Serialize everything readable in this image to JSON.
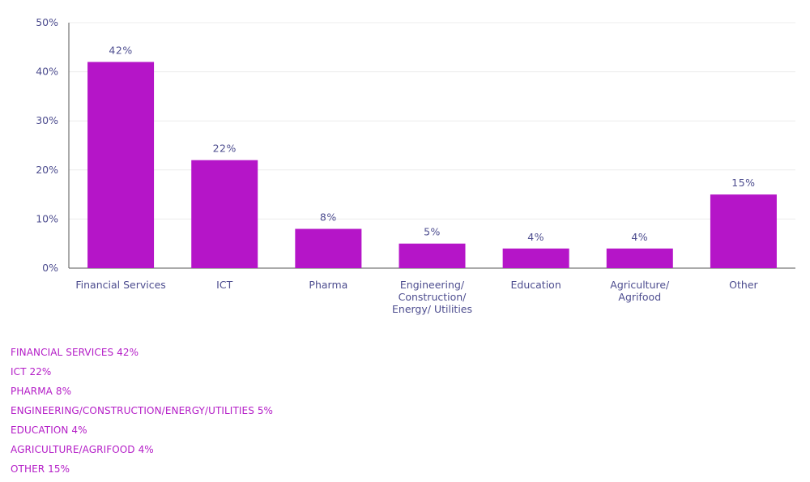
{
  "chart_data": {
    "type": "bar",
    "categories": [
      [
        "Financial Services"
      ],
      [
        "ICT"
      ],
      [
        "Pharma"
      ],
      [
        "Engineering/",
        "Construction/",
        "Energy/ Utilities"
      ],
      [
        "Education"
      ],
      [
        "Agriculture/",
        "Agrifood"
      ],
      [
        "Other"
      ]
    ],
    "values": [
      42,
      22,
      8,
      5,
      4,
      4,
      15
    ],
    "value_labels": [
      "42%",
      "22%",
      "8%",
      "5%",
      "4%",
      "4%",
      "15%"
    ],
    "y_ticks": [
      "0%",
      "10%",
      "20%",
      "30%",
      "40%",
      "50%"
    ],
    "ylim": [
      0,
      50
    ],
    "grid": true,
    "bar_color": "#b515c8",
    "title": "",
    "xlabel": "",
    "ylabel": ""
  },
  "legend": {
    "items": [
      "FINANCIAL SERVICES 42%",
      "ICT 22%",
      "PHARMA 8%",
      "ENGINEERING/CONSTRUCTION/ENERGY/UTILITIES 5%",
      "EDUCATION 4%",
      "AGRICULTURE/AGRIFOOD 4%",
      "OTHER 15%"
    ]
  }
}
